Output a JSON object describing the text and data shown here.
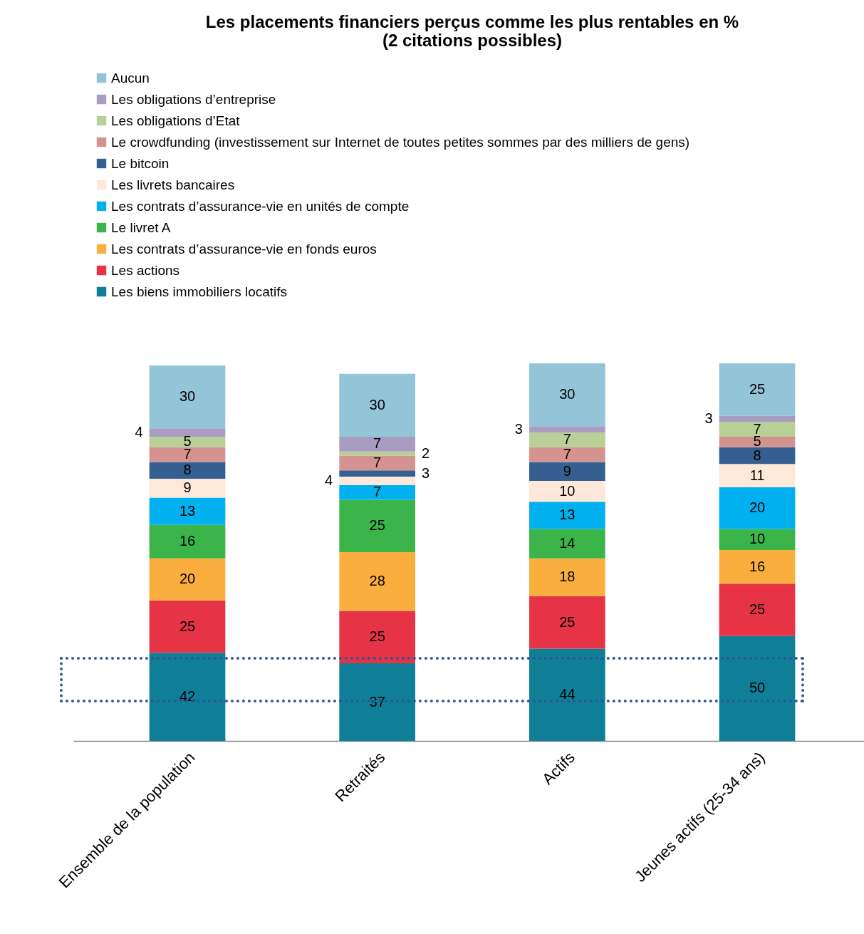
{
  "chart_data": {
    "type": "bar",
    "title": "Les placements financiers perçus comme les plus rentables en %\n(2 citations possibles)",
    "categories": [
      "Ensemble de la population",
      "Retraités",
      "Actifs",
      "Jeunes actifs (25-34 ans)"
    ],
    "stacked": true,
    "data_labels": true,
    "legend": "top left",
    "grid": false,
    "series": [
      {
        "name": "Les biens immobiliers locatifs",
        "color": "#0e7f97",
        "values": [
          42,
          37,
          44,
          50
        ]
      },
      {
        "name": "Les actions",
        "color": "#e63446",
        "values": [
          25,
          25,
          25,
          25
        ]
      },
      {
        "name": "Les contrats d’assurance-vie en fonds euros",
        "color": "#f9ae3d",
        "values": [
          20,
          28,
          18,
          16
        ]
      },
      {
        "name": "Le livret A",
        "color": "#3bb54a",
        "values": [
          16,
          25,
          14,
          10
        ]
      },
      {
        "name": "Les contrats d’assurance-vie en unités de compte",
        "color": "#00b0ef",
        "values": [
          13,
          7,
          13,
          20
        ]
      },
      {
        "name": "Les livrets bancaires",
        "color": "#fde8d9",
        "values": [
          9,
          4,
          10,
          11
        ]
      },
      {
        "name": "Le bitcoin",
        "color": "#355f91",
        "values": [
          8,
          3,
          9,
          8
        ]
      },
      {
        "name": "Le crowdfunding (investissement sur Internet de toutes petites sommes par des milliers de gens)",
        "color": "#d49390",
        "values": [
          7,
          7,
          7,
          5
        ]
      },
      {
        "name": "Les obligations d’Etat",
        "color": "#b8d095",
        "values": [
          5,
          2,
          7,
          7
        ]
      },
      {
        "name": "Les obligations d’entreprise",
        "color": "#a89cc0",
        "values": [
          4,
          7,
          3,
          3
        ]
      },
      {
        "name": "Aucun",
        "color": "#93c4d7",
        "values": [
          30,
          30,
          30,
          25
        ]
      }
    ]
  }
}
